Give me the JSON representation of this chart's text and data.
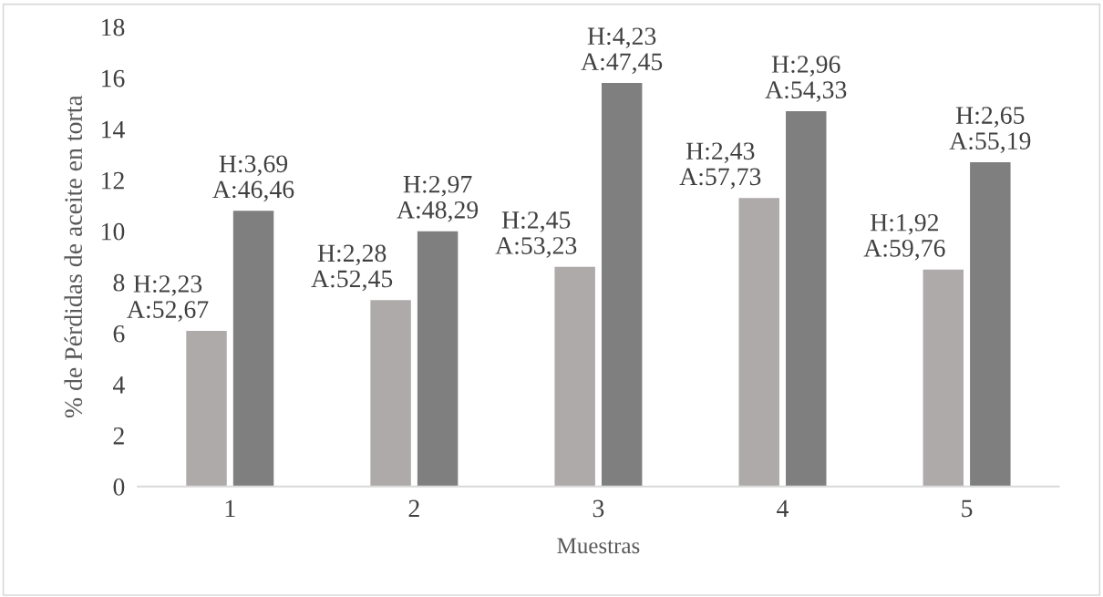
{
  "chart_data": {
    "type": "bar",
    "xlabel": "Muestras",
    "ylabel": "% de Pérdidas de aceite en torta",
    "categories": [
      "1",
      "2",
      "3",
      "4",
      "5"
    ],
    "series": [
      {
        "color": "#aeaaaa",
        "values": [
          6.1,
          7.3,
          8.6,
          11.3,
          8.5
        ],
        "value_labels": [
          "H:2,23\nA:52,67",
          "H:2,28\nA:52,45",
          "H:2,45\nA:53,23",
          "H:2,43\nA:57,73",
          "H:1,92\nA:59,76"
        ]
      },
      {
        "color": "#7f7f7f",
        "values": [
          10.8,
          10.0,
          15.8,
          14.7,
          12.7
        ],
        "value_labels": [
          "H:3,69\nA:46,46",
          "H:2,97\nA:48,29",
          "H:4,23\nA:47,45",
          "H:2,96\nA:54,33",
          "H:2,65\nA:55,19"
        ]
      }
    ],
    "ylim": [
      0,
      18
    ],
    "yticks": [
      0,
      2,
      4,
      6,
      8,
      10,
      12,
      14,
      16,
      18
    ],
    "grid": false
  }
}
